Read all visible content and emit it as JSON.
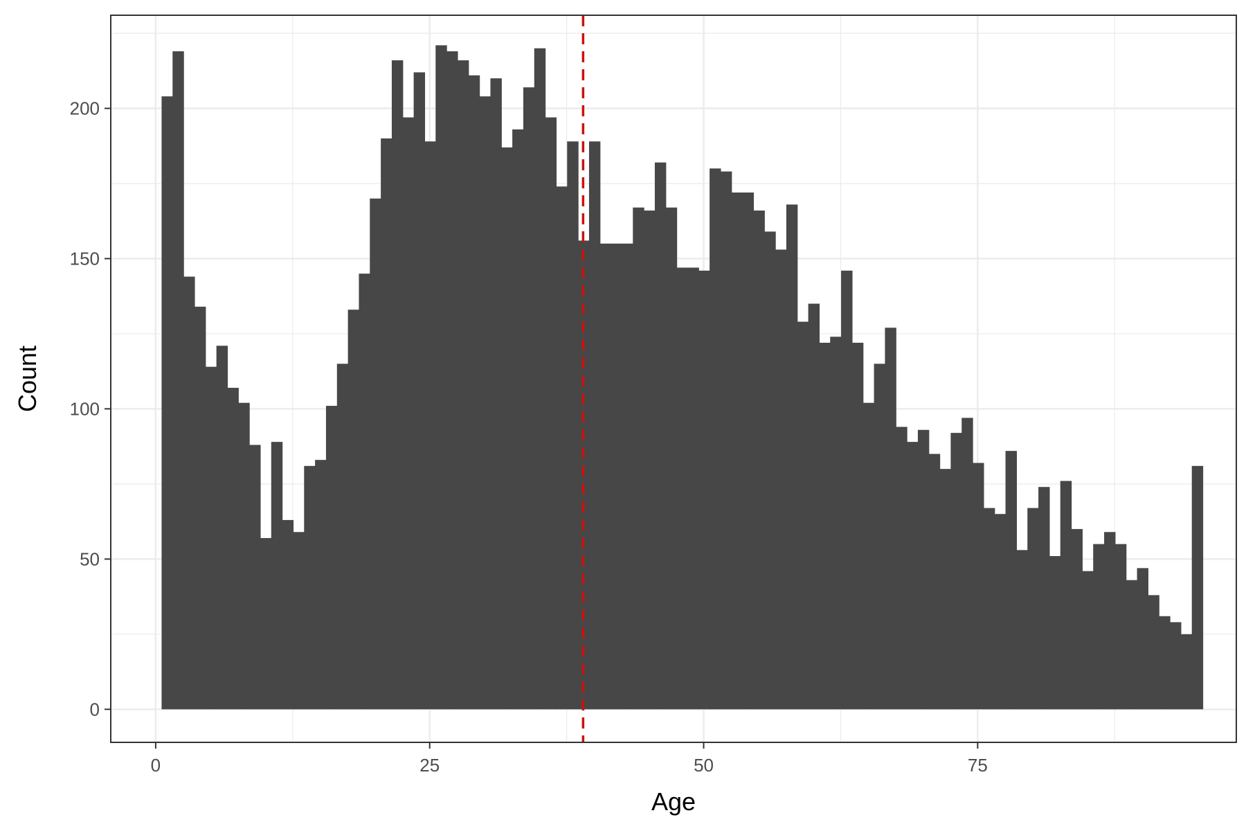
{
  "chart_data": {
    "type": "bar",
    "subtype": "histogram",
    "title": "",
    "xlabel": "Age",
    "ylabel": "Count",
    "xlim": [
      -4.1,
      98.6
    ],
    "ylim": [
      -11,
      231
    ],
    "x_ticks": [
      0,
      25,
      50,
      75
    ],
    "x_tick_labels": [
      "0",
      "25",
      "50",
      "75"
    ],
    "y_ticks": [
      0,
      50,
      100,
      150,
      200
    ],
    "y_tick_labels": [
      "0",
      "50",
      "100",
      "150",
      "200"
    ],
    "grid": true,
    "bin_start": 0.54,
    "bin_width": 1.0,
    "bar_color": "#474747",
    "values": [
      204,
      219,
      144,
      134,
      114,
      121,
      107,
      102,
      88,
      57,
      89,
      63,
      59,
      81,
      83,
      101,
      115,
      133,
      145,
      170,
      190,
      216,
      197,
      212,
      189,
      221,
      219,
      216,
      211,
      204,
      210,
      187,
      193,
      207,
      220,
      197,
      174,
      189,
      156,
      189,
      155,
      155,
      155,
      167,
      166,
      182,
      167,
      147,
      147,
      146,
      180,
      179,
      172,
      172,
      166,
      159,
      153,
      168,
      129,
      135,
      122,
      124,
      146,
      122,
      102,
      115,
      127,
      94,
      89,
      93,
      85,
      80,
      92,
      97,
      82,
      67,
      65,
      86,
      53,
      67,
      74,
      51,
      76,
      60,
      46,
      55,
      59,
      55,
      43,
      47,
      38,
      31,
      29,
      25,
      81
    ],
    "reference_line": {
      "x": 39,
      "color": "#cc1111",
      "style": "dashed"
    }
  }
}
